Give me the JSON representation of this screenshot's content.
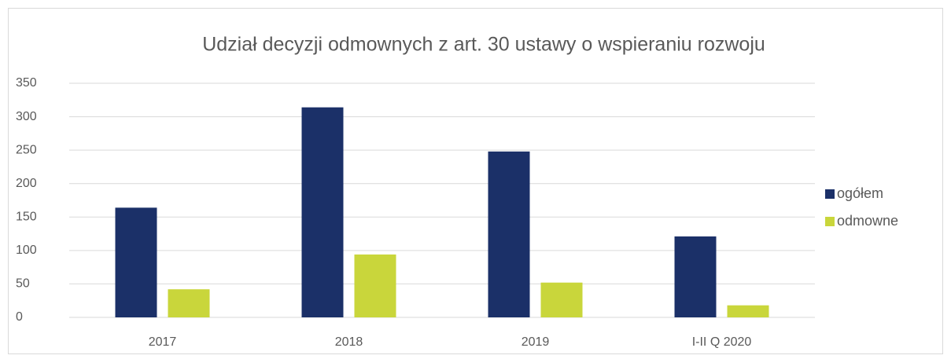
{
  "chart_data": {
    "type": "bar",
    "title": "Udział decyzji odmownych z art. 30 ustawy o wspieraniu rozwoju",
    "categories": [
      "2017",
      "2018",
      "2019",
      "I-II Q 2020"
    ],
    "series": [
      {
        "name": "ogółem",
        "color": "#1b3068",
        "values": [
          164,
          314,
          248,
          121
        ]
      },
      {
        "name": "odmowne",
        "color": "#c9d63b",
        "values": [
          42,
          94,
          52,
          18
        ]
      }
    ],
    "ylim": [
      0,
      350
    ],
    "yticks": [
      0,
      50,
      100,
      150,
      200,
      250,
      300,
      350
    ],
    "grid": true,
    "legend": "right"
  }
}
